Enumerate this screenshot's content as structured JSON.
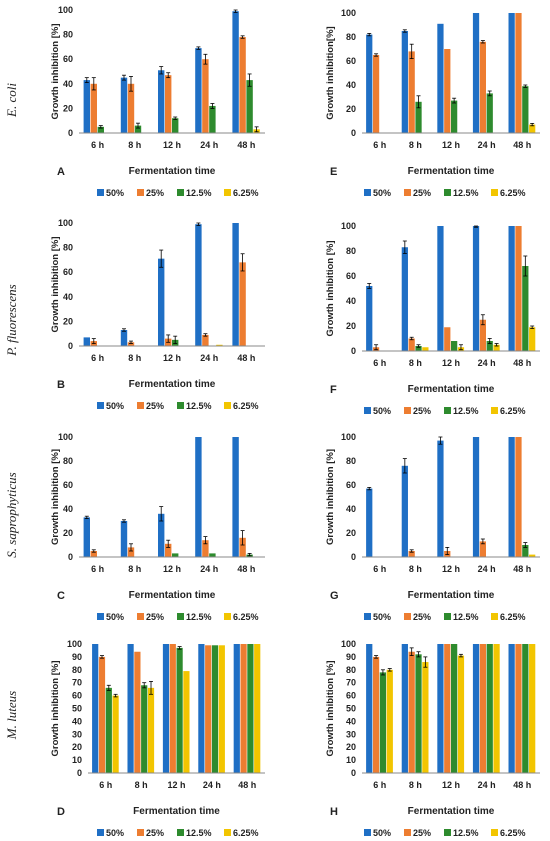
{
  "figure": {
    "colors": {
      "50%": "#1f6fc5",
      "25%": "#ed7d31",
      "12.5%": "#2e8b2e",
      "6.25%": "#f2c500",
      "axis": "#888888",
      "error": "#000000"
    },
    "row_labels": [
      "E. coli",
      "P. fluorescens",
      "S. saprophyticus",
      "M. luteus"
    ]
  },
  "chart_data": [
    {
      "panel": "A",
      "type": "bar",
      "organism": "E. coli",
      "categories": [
        "6 h",
        "8 h",
        "12 h",
        "24 h",
        "48 h"
      ],
      "xlabel": "Fermentation time",
      "ylabel": "Growth inhibition [%]",
      "ylim": [
        0,
        100
      ],
      "yticks": [
        0,
        20,
        40,
        60,
        80,
        100
      ],
      "legend": [
        "50%",
        "25%",
        "12.5%",
        "6.25%"
      ],
      "series": [
        {
          "name": "50%",
          "values": [
            43,
            45,
            51,
            69,
            99
          ],
          "errors": [
            2,
            2,
            3,
            1,
            1
          ]
        },
        {
          "name": "25%",
          "values": [
            40,
            40,
            47,
            60,
            78
          ],
          "errors": [
            5,
            6,
            2,
            4,
            1
          ]
        },
        {
          "name": "12.5%",
          "values": [
            5,
            6,
            12,
            22,
            43
          ],
          "errors": [
            1,
            2,
            1,
            2,
            5
          ]
        },
        {
          "name": "6.25%",
          "values": [
            0,
            0,
            0,
            0,
            3
          ],
          "errors": [
            0,
            0,
            0,
            0,
            2
          ]
        }
      ]
    },
    {
      "panel": "E",
      "type": "bar",
      "organism": "E. coli",
      "categories": [
        "6 h",
        "8 h",
        "12 h",
        "24 h",
        "48 h"
      ],
      "xlabel": "Fermentation time",
      "ylabel": "Growth inhibition[%]",
      "ylim": [
        0,
        100
      ],
      "yticks": [
        0,
        20,
        40,
        60,
        80,
        100
      ],
      "legend": [
        "50%",
        "25%",
        "12.5%",
        "6.25%"
      ],
      "series": [
        {
          "name": "50%",
          "values": [
            82,
            85,
            91,
            100,
            100
          ],
          "errors": [
            1,
            1,
            0,
            0,
            0
          ]
        },
        {
          "name": "25%",
          "values": [
            65,
            68,
            70,
            76,
            100
          ],
          "errors": [
            1,
            6,
            0,
            1,
            0
          ]
        },
        {
          "name": "12.5%",
          "values": [
            0,
            26,
            27,
            33,
            39
          ],
          "errors": [
            0,
            5,
            2,
            2,
            1
          ]
        },
        {
          "name": "6.25%",
          "values": [
            0,
            0,
            0,
            0,
            7
          ],
          "errors": [
            0,
            0,
            0,
            0,
            1
          ]
        }
      ]
    },
    {
      "panel": "B",
      "type": "bar",
      "organism": "P. fluorescens",
      "categories": [
        "6 h",
        "8 h",
        "12 h",
        "24 h",
        "48 h"
      ],
      "xlabel": "Fermentation time",
      "ylabel": "Growth inhibition [%]",
      "ylim": [
        0,
        100
      ],
      "yticks": [
        0,
        20,
        40,
        60,
        80,
        100
      ],
      "legend": [
        "50%",
        "25%",
        "12.5%",
        "6.25%"
      ],
      "series": [
        {
          "name": "50%",
          "values": [
            7,
            13,
            71,
            99,
            100
          ],
          "errors": [
            0,
            1,
            7,
            1,
            0
          ]
        },
        {
          "name": "25%",
          "values": [
            4,
            3,
            6,
            9,
            68
          ],
          "errors": [
            2,
            1,
            3,
            1,
            7
          ]
        },
        {
          "name": "12.5%",
          "values": [
            0,
            0,
            5,
            0,
            0
          ],
          "errors": [
            0,
            0,
            3,
            0,
            0
          ]
        },
        {
          "name": "6.25%",
          "values": [
            0,
            0,
            0,
            1,
            0
          ],
          "errors": [
            0,
            0,
            0,
            0,
            0
          ]
        }
      ]
    },
    {
      "panel": "F",
      "type": "bar",
      "organism": "P. fluorescens",
      "categories": [
        "6 h",
        "8 h",
        "12 h",
        "24 h",
        "48 h"
      ],
      "xlabel": "Fermentation time",
      "ylabel": "Growth inhibition [%]",
      "ylim": [
        0,
        100
      ],
      "yticks": [
        0,
        20,
        40,
        60,
        80,
        100
      ],
      "legend": [
        "50%",
        "25%",
        "12.5%",
        "6.25%"
      ],
      "series": [
        {
          "name": "50%",
          "values": [
            52,
            83,
            100,
            100,
            100
          ],
          "errors": [
            2,
            5,
            0,
            1,
            0
          ]
        },
        {
          "name": "25%",
          "values": [
            3,
            10,
            19,
            25,
            100
          ],
          "errors": [
            2,
            1,
            0,
            4,
            0
          ]
        },
        {
          "name": "12.5%",
          "values": [
            0,
            4,
            8,
            8,
            68
          ],
          "errors": [
            0,
            1,
            0,
            2,
            8
          ]
        },
        {
          "name": "6.25%",
          "values": [
            0,
            3,
            3,
            5,
            19
          ],
          "errors": [
            0,
            0,
            2,
            1,
            1
          ]
        }
      ]
    },
    {
      "panel": "C",
      "type": "bar",
      "organism": "S. saprophyticus",
      "categories": [
        "6 h",
        "8 h",
        "12 h",
        "24 h",
        "48 h"
      ],
      "xlabel": "Fermentation time",
      "ylabel": "Growth inhibition [%]",
      "ylim": [
        0,
        100
      ],
      "yticks": [
        0,
        20,
        40,
        60,
        80,
        100
      ],
      "legend": [
        "50%",
        "25%",
        "12.5%",
        "6.25%"
      ],
      "series": [
        {
          "name": "50%",
          "values": [
            33,
            30,
            36,
            100,
            100
          ],
          "errors": [
            1,
            1,
            6,
            0,
            0
          ]
        },
        {
          "name": "25%",
          "values": [
            5,
            8,
            11,
            14,
            16
          ],
          "errors": [
            1,
            3,
            3,
            3,
            6
          ]
        },
        {
          "name": "12.5%",
          "values": [
            0,
            0,
            3,
            3,
            2
          ],
          "errors": [
            0,
            0,
            0,
            0,
            1
          ]
        },
        {
          "name": "6.25%",
          "values": [
            0,
            0,
            0,
            0,
            0
          ],
          "errors": [
            0,
            0,
            0,
            0,
            0
          ]
        }
      ]
    },
    {
      "panel": "G",
      "type": "bar",
      "organism": "S. saprophyticus",
      "categories": [
        "6 h",
        "8 h",
        "12 h",
        "24 h",
        "48 h"
      ],
      "xlabel": "Fermentation time",
      "ylabel": "Growth inhibition [%]",
      "ylim": [
        0,
        100
      ],
      "yticks": [
        0,
        20,
        40,
        60,
        80,
        100
      ],
      "legend": [
        "50%",
        "25%",
        "12.5%",
        "6.25%"
      ],
      "series": [
        {
          "name": "50%",
          "values": [
            57,
            76,
            97,
            100,
            100
          ],
          "errors": [
            1,
            6,
            3,
            0,
            0
          ]
        },
        {
          "name": "25%",
          "values": [
            0,
            5,
            5,
            13,
            100
          ],
          "errors": [
            0,
            1,
            3,
            2,
            0
          ]
        },
        {
          "name": "12.5%",
          "values": [
            0,
            0,
            0,
            0,
            10
          ],
          "errors": [
            0,
            0,
            0,
            0,
            2
          ]
        },
        {
          "name": "6.25%",
          "values": [
            0,
            0,
            0,
            0,
            2
          ],
          "errors": [
            0,
            0,
            0,
            0,
            0
          ]
        }
      ]
    },
    {
      "panel": "D",
      "type": "bar",
      "organism": "M. luteus",
      "categories": [
        "6 h",
        "8 h",
        "12 h",
        "24 h",
        "48 h"
      ],
      "xlabel": "Fermentation time",
      "ylabel": "Growth inhibition [%]",
      "ylim": [
        0,
        100
      ],
      "yticks": [
        0,
        10,
        20,
        30,
        40,
        50,
        60,
        70,
        80,
        90,
        100
      ],
      "legend": [
        "50%",
        "25%",
        "12.5%",
        "6.25%"
      ],
      "series": [
        {
          "name": "50%",
          "values": [
            100,
            100,
            100,
            100,
            100
          ],
          "errors": [
            0,
            0,
            0,
            0,
            0
          ]
        },
        {
          "name": "25%",
          "values": [
            90,
            94,
            100,
            99,
            100
          ],
          "errors": [
            1,
            0,
            0,
            0,
            0
          ]
        },
        {
          "name": "12.5%",
          "values": [
            66,
            68,
            97,
            99,
            100
          ],
          "errors": [
            2,
            2,
            1,
            0,
            0
          ]
        },
        {
          "name": "6.25%",
          "values": [
            60,
            66,
            79,
            99,
            100
          ],
          "errors": [
            1,
            5,
            0,
            0,
            0
          ]
        }
      ]
    },
    {
      "panel": "H",
      "type": "bar",
      "organism": "M. luteus",
      "categories": [
        "6 h",
        "8 h",
        "12 h",
        "24 h",
        "48 h"
      ],
      "xlabel": "Fermentation time",
      "ylabel": "Growth inhibition [%]",
      "ylim": [
        0,
        100
      ],
      "yticks": [
        0,
        10,
        20,
        30,
        40,
        50,
        60,
        70,
        80,
        90,
        100
      ],
      "legend": [
        "50%",
        "25%",
        "12.5%",
        "6.25%"
      ],
      "series": [
        {
          "name": "50%",
          "values": [
            100,
            100,
            100,
            100,
            100
          ],
          "errors": [
            0,
            0,
            0,
            0,
            0
          ]
        },
        {
          "name": "25%",
          "values": [
            90,
            94,
            100,
            100,
            100
          ],
          "errors": [
            1,
            3,
            0,
            0,
            0
          ]
        },
        {
          "name": "12.5%",
          "values": [
            78,
            92,
            100,
            100,
            100
          ],
          "errors": [
            2,
            2,
            0,
            0,
            0
          ]
        },
        {
          "name": "6.25%",
          "values": [
            80,
            86,
            91,
            100,
            100
          ],
          "errors": [
            1,
            4,
            1,
            0,
            0
          ]
        }
      ]
    }
  ]
}
